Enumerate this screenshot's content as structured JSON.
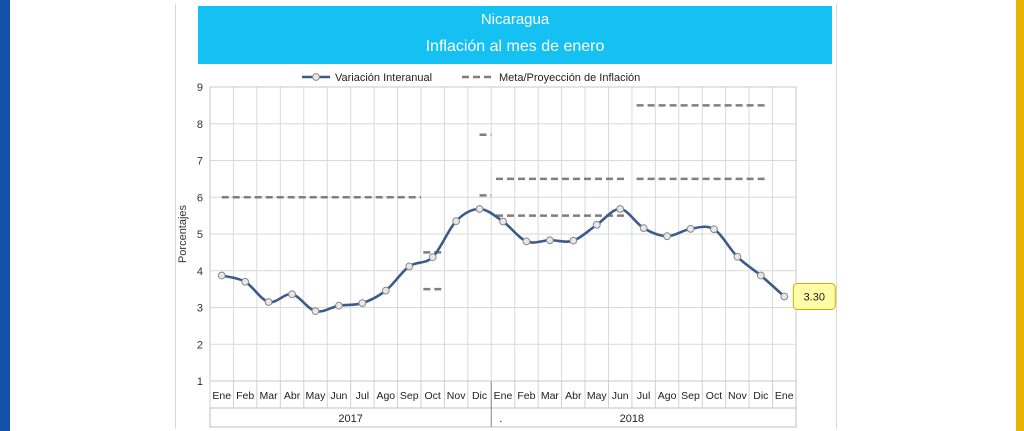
{
  "colors": {
    "banner": "#14c1f2",
    "edge_left": "#1550a8",
    "edge_right": "#e6b400",
    "series_line": "#3d5a8c",
    "target_dash": "#7f7f7f",
    "callout_fill": "#fffca8",
    "callout_border": "#c8b400",
    "grid": "#d9d9d9"
  },
  "chart_data": {
    "type": "line",
    "title": "Nicaragua",
    "subtitle": "Inflación al mes de enero",
    "ylabel": "Porcentajes",
    "xlabel": "",
    "ylim": [
      1,
      9
    ],
    "yticks": [
      "1",
      "2",
      "3",
      "4",
      "5",
      "6",
      "7",
      "8",
      "9"
    ],
    "grid": true,
    "legend_position": "top",
    "categories": [
      "Ene",
      "Feb",
      "Mar",
      "Abr",
      "May",
      "Jun",
      "Jul",
      "Ago",
      "Sep",
      "Oct",
      "Nov",
      "Dic",
      "Ene",
      "Feb",
      "Mar",
      "Abr",
      "May",
      "Jun",
      "Jul",
      "Ago",
      "Sep",
      "Oct",
      "Nov",
      "Dic",
      "Ene"
    ],
    "year_groups": [
      {
        "label": "2017",
        "start": 0,
        "end": 11
      },
      {
        "label": "2018",
        "start": 12,
        "end": 23
      }
    ],
    "year_marker": ".",
    "series": [
      {
        "name": "Variación Interanual",
        "style": "solid-markers",
        "values": [
          3.87,
          3.7,
          3.15,
          3.36,
          2.9,
          3.05,
          3.12,
          3.46,
          4.12,
          4.37,
          5.35,
          5.68,
          5.34,
          4.8,
          4.83,
          4.82,
          5.25,
          5.68,
          5.16,
          4.94,
          5.14,
          5.13,
          4.38,
          3.87,
          3.3
        ]
      },
      {
        "name": "Meta/Proyección de Inflación",
        "style": "dashed",
        "segments": [
          {
            "from": 0,
            "to": 8.5,
            "value": 6.0
          },
          {
            "from": 8.6,
            "to": 9.4,
            "value": 4.5
          },
          {
            "from": 8.6,
            "to": 9.4,
            "value": 3.5
          },
          {
            "from": 11.0,
            "to": 11.5,
            "value": 6.05
          },
          {
            "from": 11.0,
            "to": 11.5,
            "value": 7.7
          },
          {
            "from": 11.7,
            "to": 17.2,
            "value": 6.5
          },
          {
            "from": 11.7,
            "to": 17.2,
            "value": 5.5
          },
          {
            "from": 17.7,
            "to": 23.2,
            "value": 8.5
          },
          {
            "from": 17.7,
            "to": 23.2,
            "value": 6.5
          }
        ]
      }
    ],
    "annotations": [
      {
        "text": "3.30",
        "index": 24,
        "value": 3.3
      }
    ]
  }
}
